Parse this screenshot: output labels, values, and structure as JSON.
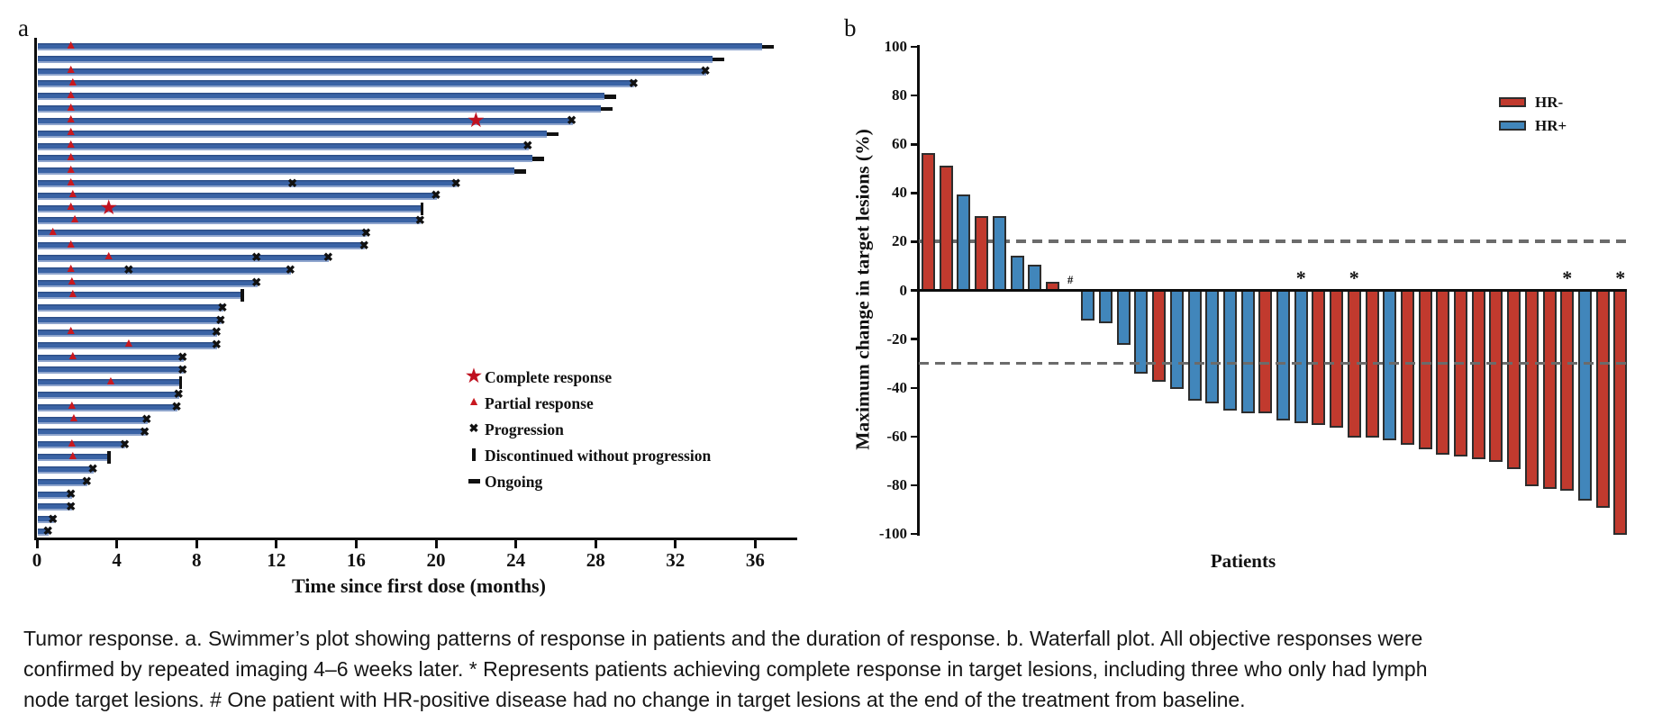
{
  "figure": {
    "panel_a_label": "a",
    "panel_b_label": "b"
  },
  "caption_lines": [
    "Tumor response. a. Swimmer’s plot showing patterns of response in patients and the duration of response. b. Waterfall plot. All objective responses were",
    "confirmed by repeated imaging 4–6 weeks later. * Represents patients achieving complete response in target lesions, including three who only had lymph",
    "node target lesions. # One patient with HR-positive disease had no change in target lesions at the end of the treatment from baseline."
  ],
  "chart_data": [
    {
      "id": "swimmer",
      "type": "bar",
      "orientation": "horizontal",
      "xlabel": "Time since first dose (months)",
      "x_ticks": [
        0,
        4,
        8,
        12,
        16,
        20,
        24,
        28,
        32,
        36
      ],
      "xlim": [
        0,
        38
      ],
      "bar_color": "#3a63a5",
      "marker_colors": {
        "response_red": "#c8181f",
        "star_red": "#bf1120",
        "event_black": "#111111"
      },
      "legend": [
        {
          "marker": "star",
          "label": "Complete response"
        },
        {
          "marker": "triangle",
          "label": "Partial response"
        },
        {
          "marker": "cross",
          "label": "Progression"
        },
        {
          "marker": "vbar",
          "label": "Discontinued without progression"
        },
        {
          "marker": "dash",
          "label": "Ongoing"
        }
      ],
      "patients": [
        {
          "duration": 36.3,
          "end": "ongoing",
          "triangle": 1.7
        },
        {
          "duration": 33.8,
          "end": "ongoing"
        },
        {
          "duration": 33.5,
          "end": "progression",
          "triangle": 1.7
        },
        {
          "duration": 29.9,
          "end": "progression",
          "triangle": 1.8
        },
        {
          "duration": 28.4,
          "end": "ongoing",
          "triangle": 1.7
        },
        {
          "duration": 28.2,
          "end": "ongoing",
          "triangle": 1.7
        },
        {
          "duration": 26.8,
          "end": "progression",
          "triangle": 1.7,
          "star": 22.0
        },
        {
          "duration": 25.5,
          "end": "ongoing",
          "triangle": 1.7
        },
        {
          "duration": 24.6,
          "end": "progression",
          "triangle": 1.7
        },
        {
          "duration": 24.8,
          "end": "ongoing",
          "triangle": 1.7
        },
        {
          "duration": 23.9,
          "end": "ongoing",
          "triangle": 1.7
        },
        {
          "duration": 21.0,
          "end": "progression",
          "triangle": 1.7,
          "mid_crosses": [
            12.8
          ]
        },
        {
          "duration": 20.0,
          "end": "progression",
          "triangle": 1.8
        },
        {
          "duration": 19.3,
          "end": "discontinued",
          "triangle": 1.7,
          "star": 3.6
        },
        {
          "duration": 19.2,
          "end": "progression",
          "triangle": 1.9
        },
        {
          "duration": 16.5,
          "end": "progression",
          "triangle": 0.8
        },
        {
          "duration": 16.4,
          "end": "progression",
          "triangle": 1.7
        },
        {
          "duration": 14.6,
          "end": "progression",
          "triangle": 3.6,
          "mid_crosses": [
            11.0
          ]
        },
        {
          "duration": 12.7,
          "end": "progression",
          "triangle": 1.7,
          "mid_crosses": [
            4.6
          ]
        },
        {
          "duration": 11.0,
          "end": "progression",
          "triangle": 1.75
        },
        {
          "duration": 10.3,
          "end": "discontinued",
          "triangle": 1.8
        },
        {
          "duration": 9.3,
          "end": "progression"
        },
        {
          "duration": 9.2,
          "end": "progression"
        },
        {
          "duration": 9.0,
          "end": "progression",
          "triangle": 1.7
        },
        {
          "duration": 9.0,
          "end": "progression",
          "triangle": 4.6
        },
        {
          "duration": 7.3,
          "end": "progression",
          "triangle": 1.8
        },
        {
          "duration": 7.3,
          "end": "progression"
        },
        {
          "duration": 7.2,
          "end": "discontinued",
          "triangle": 3.7
        },
        {
          "duration": 7.1,
          "end": "progression"
        },
        {
          "duration": 7.0,
          "end": "progression",
          "triangle": 1.75
        },
        {
          "duration": 5.5,
          "end": "progression",
          "triangle": 1.85
        },
        {
          "duration": 5.4,
          "end": "progression"
        },
        {
          "duration": 4.4,
          "end": "progression",
          "triangle": 1.75
        },
        {
          "duration": 3.6,
          "end": "discontinued",
          "triangle": 1.8
        },
        {
          "duration": 2.8,
          "end": "progression"
        },
        {
          "duration": 2.5,
          "end": "progression"
        },
        {
          "duration": 1.7,
          "end": "progression"
        },
        {
          "duration": 1.7,
          "end": "progression"
        },
        {
          "duration": 0.8,
          "end": "progression"
        },
        {
          "duration": 0.55,
          "end": "progression"
        }
      ]
    },
    {
      "id": "waterfall",
      "type": "bar",
      "ylabel": "Maximum change in target lesions (%)",
      "xlabel": "Patients",
      "ylim": [
        -100,
        100
      ],
      "y_ticks": [
        100,
        80,
        60,
        40,
        20,
        0,
        -20,
        -40,
        -60,
        -80,
        -100
      ],
      "reference_lines": [
        20,
        -30
      ],
      "reference_line_color": "#6b6b6b",
      "flag_glyphs": {
        "asterisk": "*",
        "hash": "#"
      },
      "legend": [
        {
          "label": "HR-",
          "color": "#c13a2e"
        },
        {
          "label": "HR+",
          "color": "#4186bb"
        }
      ],
      "bars": [
        {
          "value": 56,
          "group": "HR-"
        },
        {
          "value": 51,
          "group": "HR-"
        },
        {
          "value": 39,
          "group": "HR+"
        },
        {
          "value": 30,
          "group": "HR-"
        },
        {
          "value": 30,
          "group": "HR+"
        },
        {
          "value": 14,
          "group": "HR+"
        },
        {
          "value": 10,
          "group": "HR+"
        },
        {
          "value": 3,
          "group": "HR-"
        },
        {
          "value": 0,
          "group": "HR+",
          "flag": "hash"
        },
        {
          "value": -12,
          "group": "HR+"
        },
        {
          "value": -13,
          "group": "HR+"
        },
        {
          "value": -22,
          "group": "HR+"
        },
        {
          "value": -34,
          "group": "HR+"
        },
        {
          "value": -37,
          "group": "HR-"
        },
        {
          "value": -40,
          "group": "HR+"
        },
        {
          "value": -45,
          "group": "HR+"
        },
        {
          "value": -46,
          "group": "HR+"
        },
        {
          "value": -49,
          "group": "HR+"
        },
        {
          "value": -50,
          "group": "HR+"
        },
        {
          "value": -50,
          "group": "HR-"
        },
        {
          "value": -53,
          "group": "HR+"
        },
        {
          "value": -54,
          "group": "HR+",
          "flag": "asterisk"
        },
        {
          "value": -55,
          "group": "HR-"
        },
        {
          "value": -56,
          "group": "HR-"
        },
        {
          "value": -60,
          "group": "HR-",
          "flag": "asterisk"
        },
        {
          "value": -60,
          "group": "HR-"
        },
        {
          "value": -61,
          "group": "HR+"
        },
        {
          "value": -63,
          "group": "HR-"
        },
        {
          "value": -65,
          "group": "HR-"
        },
        {
          "value": -67,
          "group": "HR-"
        },
        {
          "value": -68,
          "group": "HR-"
        },
        {
          "value": -69,
          "group": "HR-"
        },
        {
          "value": -70,
          "group": "HR-"
        },
        {
          "value": -73,
          "group": "HR-"
        },
        {
          "value": -80,
          "group": "HR-"
        },
        {
          "value": -81,
          "group": "HR-"
        },
        {
          "value": -82,
          "group": "HR-",
          "flag": "asterisk"
        },
        {
          "value": -86,
          "group": "HR+"
        },
        {
          "value": -89,
          "group": "HR-"
        },
        {
          "value": -100,
          "group": "HR-",
          "flag": "asterisk"
        }
      ]
    }
  ]
}
